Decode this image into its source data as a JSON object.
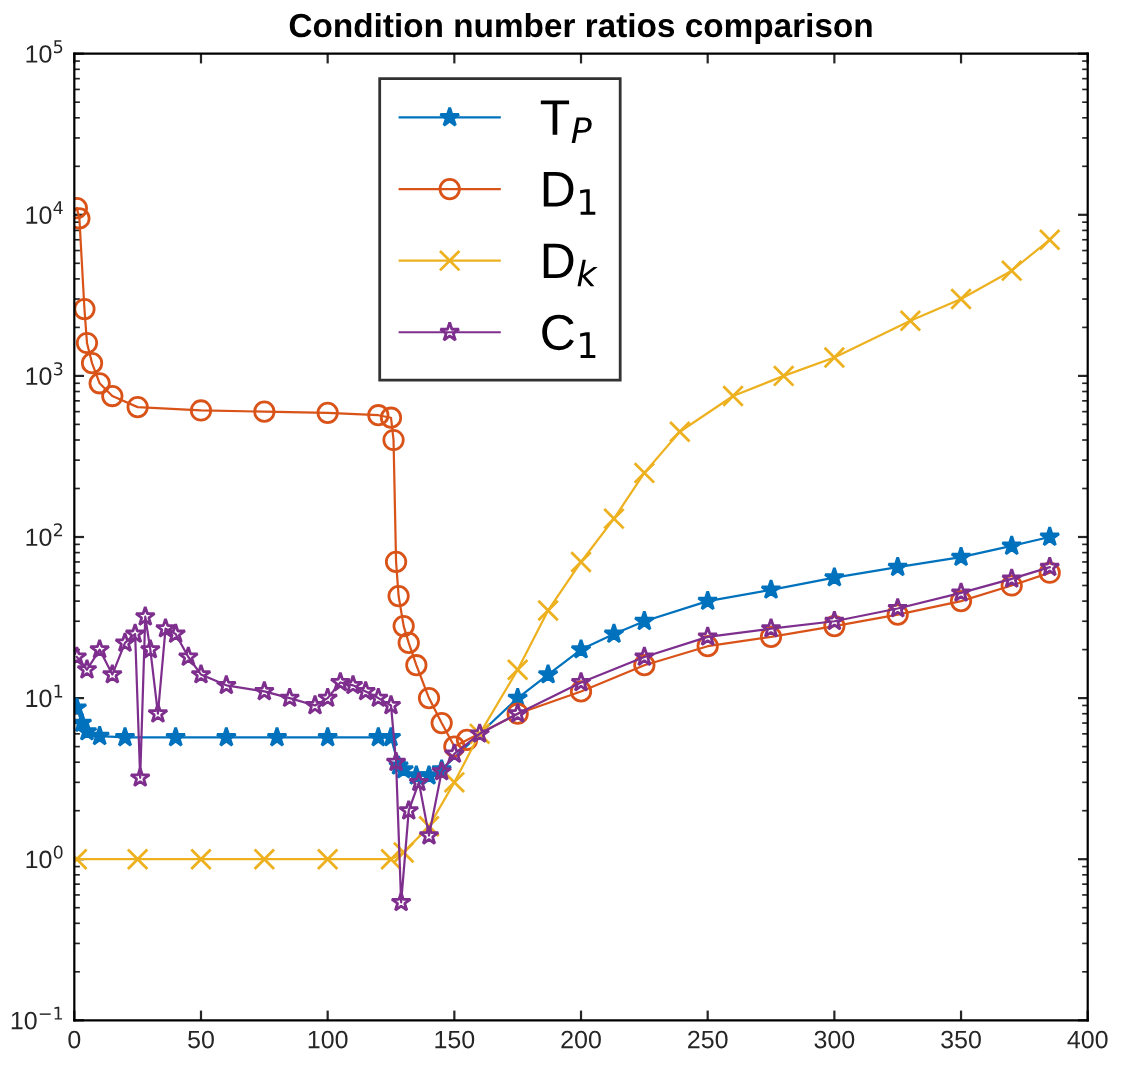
{
  "chart_data": {
    "type": "line",
    "title": "Condition number ratios comparison",
    "xlim": [
      0,
      400
    ],
    "xticks": [
      0,
      50,
      100,
      150,
      200,
      250,
      300,
      350,
      400
    ],
    "log": "y",
    "ylim": [
      0.1,
      100000
    ],
    "yticks": [
      {
        "value": 0.1,
        "label": "10$^{−1}$"
      },
      {
        "value": 1,
        "label": "10$^{0}$"
      },
      {
        "value": 10,
        "label": "10$^{1}$"
      },
      {
        "value": 100,
        "label": "10$^{2}$"
      },
      {
        "value": 1000,
        "label": "10$^{3}$"
      },
      {
        "value": 10000,
        "label": "10$^{4}$"
      },
      {
        "value": 100000,
        "label": "10$^{5}$"
      }
    ],
    "grid": false,
    "legend": "top",
    "line_style": "solid",
    "series": [
      {
        "name": "T$_{P}$",
        "color": "#0072bd",
        "marker": "star",
        "x": [
          1,
          3,
          5,
          10,
          20,
          40,
          60,
          80,
          100,
          120,
          125,
          128,
          130,
          135,
          140,
          145,
          175,
          187,
          200,
          213,
          225,
          250,
          275,
          300,
          325,
          350,
          370,
          385
        ],
        "values": [
          8.7,
          7,
          6.2,
          5.8,
          5.7,
          5.7,
          5.7,
          5.7,
          5.7,
          5.7,
          5.7,
          3.8,
          3.6,
          3.3,
          3.3,
          3.6,
          10,
          14,
          20,
          25,
          30,
          40,
          47,
          56,
          65,
          75,
          88,
          100
        ]
      },
      {
        "name": "D$_{1}$",
        "color": "#d95319",
        "marker": "circle",
        "x": [
          1,
          2,
          4,
          5,
          7,
          10,
          15,
          25,
          50,
          75,
          100,
          120,
          125,
          126,
          127,
          128,
          130,
          132,
          135,
          140,
          145,
          150,
          155,
          175,
          200,
          225,
          250,
          275,
          300,
          325,
          350,
          370,
          385
        ],
        "values": [
          11000,
          9500,
          2600,
          1600,
          1200,
          900,
          750,
          640,
          610,
          600,
          590,
          570,
          550,
          400,
          70,
          43,
          28,
          22,
          16,
          10,
          7,
          5,
          5.5,
          8,
          11,
          16,
          21,
          24,
          28,
          33,
          40,
          50,
          60
        ]
      },
      {
        "name": "D$_{k}$",
        "color": "#edb120",
        "marker": "cross",
        "x": [
          1,
          25,
          50,
          75,
          100,
          125,
          130,
          140,
          150,
          160,
          175,
          187,
          200,
          213,
          225,
          239,
          260,
          280,
          300,
          330,
          350,
          370,
          385
        ],
        "values": [
          1,
          1,
          1,
          1,
          1,
          1,
          1.1,
          1.6,
          3,
          6,
          15,
          35,
          70,
          130,
          250,
          450,
          750,
          1000,
          1300,
          2200,
          3000,
          4500,
          7000
        ]
      },
      {
        "name": "C$_{1}$",
        "color": "#7e2f8e",
        "marker": "star",
        "x": [
          1,
          5,
          10,
          15,
          20,
          24,
          26,
          28,
          30,
          33,
          36,
          40,
          45,
          50,
          60,
          75,
          85,
          95,
          100,
          105,
          110,
          115,
          120,
          125,
          127,
          129,
          132,
          136,
          140,
          145,
          150,
          160,
          175,
          200,
          225,
          250,
          275,
          300,
          325,
          350,
          370,
          385
        ],
        "values": [
          18,
          15,
          20,
          14,
          22,
          25,
          3.2,
          32,
          20,
          8,
          27,
          25,
          18,
          14,
          12,
          11,
          10,
          9,
          10,
          12.5,
          12,
          11,
          10,
          9,
          4,
          0.54,
          2,
          3,
          1.4,
          3.5,
          4.5,
          6,
          8,
          12.5,
          18,
          24,
          27,
          30,
          36,
          45,
          55,
          65
        ]
      }
    ]
  }
}
